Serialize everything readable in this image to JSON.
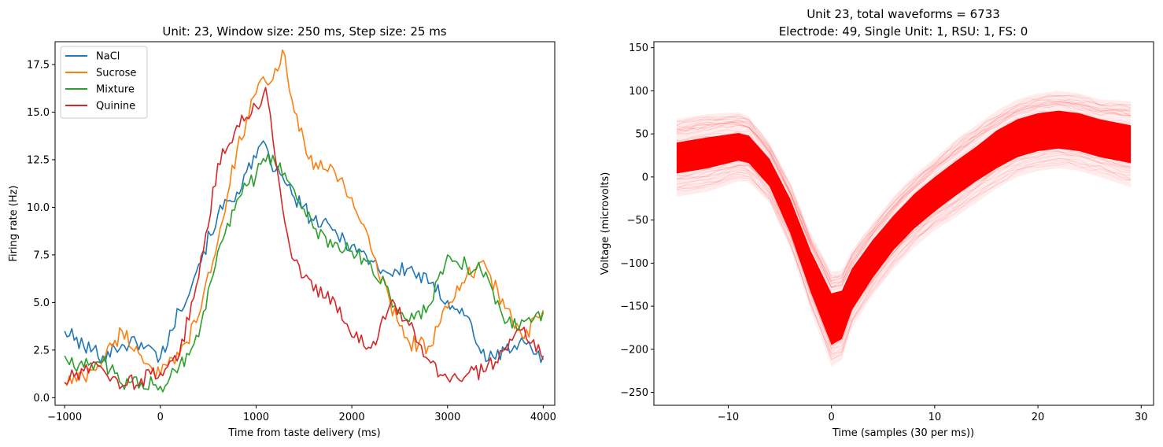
{
  "chart_data": [
    {
      "type": "line",
      "title": "Unit: 23, Window size: 250 ms, Step size: 25 ms",
      "xlabel": "Time from taste delivery (ms)",
      "ylabel": "Firing rate (Hz)",
      "xlim": [
        -1100,
        4120
      ],
      "ylim": [
        -0.4,
        18.7
      ],
      "xticks": [
        -1000,
        0,
        1000,
        2000,
        3000,
        4000
      ],
      "xtick_labels": [
        "−1000",
        "0",
        "1000",
        "2000",
        "3000",
        "4000"
      ],
      "yticks": [
        0.0,
        2.5,
        5.0,
        7.5,
        10.0,
        12.5,
        15.0,
        17.5
      ],
      "ytick_labels": [
        "0.0",
        "2.5",
        "5.0",
        "7.5",
        "10.0",
        "12.5",
        "15.0",
        "17.5"
      ],
      "legend_position": "top-left",
      "x": [
        -1000,
        -800,
        -600,
        -400,
        -200,
        0,
        200,
        400,
        600,
        800,
        1000,
        1100,
        1200,
        1300,
        1400,
        1600,
        1800,
        2000,
        2200,
        2400,
        2600,
        2800,
        3000,
        3200,
        3400,
        3600,
        3800,
        4000
      ],
      "series": [
        {
          "name": "NaCl",
          "color": "#1f77b4",
          "values": [
            3.5,
            2.7,
            2.2,
            2.8,
            2.9,
            2.1,
            4.6,
            7.0,
            9.6,
            10.8,
            12.6,
            13.3,
            11.9,
            11.3,
            10.5,
            9.3,
            8.8,
            8.0,
            7.2,
            6.5,
            6.8,
            6.0,
            5.1,
            4.3,
            1.9,
            2.5,
            2.9,
            2.2
          ]
        },
        {
          "name": "Sucrose",
          "color": "#ff7f0e",
          "values": [
            0.8,
            1.1,
            2.0,
            3.5,
            2.2,
            1.2,
            2.2,
            4.3,
            8.2,
            13.0,
            16.0,
            16.6,
            17.3,
            18.0,
            15.0,
            12.0,
            12.1,
            10.5,
            7.8,
            5.0,
            2.9,
            2.7,
            4.7,
            6.4,
            6.9,
            4.7,
            3.1,
            4.6
          ]
        },
        {
          "name": "Mixture",
          "color": "#2ca02c",
          "values": [
            2.2,
            1.6,
            1.9,
            0.7,
            0.8,
            0.6,
            1.7,
            3.2,
            7.7,
            10.4,
            11.7,
            12.4,
            12.3,
            11.8,
            10.9,
            8.9,
            7.9,
            7.7,
            7.0,
            5.3,
            4.0,
            4.8,
            7.5,
            6.9,
            6.6,
            3.9,
            4.0,
            4.5
          ]
        },
        {
          "name": "Quinine",
          "color": "#d62728",
          "values": [
            0.8,
            1.4,
            1.5,
            0.6,
            1.0,
            1.3,
            2.3,
            6.3,
            12.3,
            14.3,
            15.3,
            16.3,
            12.6,
            9.2,
            7.2,
            5.6,
            5.3,
            3.2,
            2.6,
            4.9,
            3.8,
            2.0,
            1.0,
            1.2,
            1.4,
            2.6,
            3.7,
            2.0
          ]
        }
      ]
    },
    {
      "type": "line",
      "title": "Unit 23, total waveforms = 6733",
      "subtitle": "Electrode: 49, Single Unit: 1, RSU: 1, FS: 0",
      "xlabel": "Time (samples (30 per ms))",
      "ylabel": "Voltage (microvolts)",
      "xlim": [
        -17.2,
        31.2
      ],
      "ylim": [
        -265,
        157
      ],
      "xticks": [
        -10,
        0,
        10,
        20,
        30
      ],
      "xtick_labels": [
        "−10",
        "0",
        "10",
        "20",
        "30"
      ],
      "yticks": [
        -250,
        -200,
        -150,
        -100,
        -50,
        0,
        50,
        100,
        150
      ],
      "ytick_labels": [
        "−250",
        "−200",
        "−150",
        "−100",
        "−50",
        "0",
        "50",
        "100",
        "150"
      ],
      "color": "#ff0000",
      "x": [
        -15,
        -12,
        -9,
        -8,
        -6,
        -4,
        -2,
        0,
        1,
        2,
        4,
        6,
        8,
        10,
        12,
        14,
        16,
        18,
        20,
        22,
        24,
        26,
        29
      ],
      "mean": [
        22,
        28,
        35,
        32,
        5,
        -45,
        -110,
        -165,
        -160,
        -130,
        -95,
        -65,
        -40,
        -20,
        -2,
        15,
        32,
        45,
        52,
        55,
        52,
        45,
        38
      ],
      "spread_inner": [
        18,
        18,
        16,
        16,
        16,
        20,
        24,
        30,
        28,
        24,
        22,
        20,
        20,
        20,
        20,
        20,
        22,
        22,
        22,
        22,
        22,
        22,
        22
      ],
      "spread_outer": [
        45,
        45,
        40,
        38,
        35,
        38,
        45,
        55,
        52,
        45,
        42,
        42,
        42,
        42,
        45,
        45,
        45,
        45,
        45,
        45,
        45,
        45,
        50
      ]
    }
  ]
}
